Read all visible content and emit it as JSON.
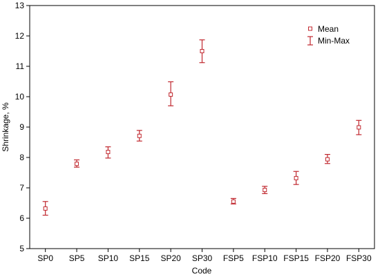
{
  "chart_data": {
    "type": "scatter",
    "xlabel": "Code",
    "ylabel": "Shrinkage, %",
    "ylim": [
      5,
      13
    ],
    "yticks": [
      5,
      6,
      7,
      8,
      9,
      10,
      11,
      12,
      13
    ],
    "categories": [
      "SP0",
      "SP5",
      "SP10",
      "SP15",
      "SP20",
      "SP30",
      "FSP5",
      "FSP10",
      "FSP15",
      "FSP20",
      "FSP30"
    ],
    "series": [
      {
        "name": "Mean",
        "values": [
          6.32,
          7.79,
          8.18,
          8.71,
          10.07,
          11.5,
          6.55,
          6.93,
          7.32,
          7.94,
          8.99
        ]
      },
      {
        "name": "Min-Max",
        "min": [
          6.1,
          7.68,
          7.98,
          8.54,
          9.7,
          11.12,
          6.47,
          6.81,
          7.11,
          7.8,
          8.75
        ],
        "max": [
          6.55,
          7.92,
          8.35,
          8.89,
          10.49,
          11.87,
          6.65,
          7.05,
          7.54,
          8.1,
          9.22
        ]
      }
    ],
    "legend": {
      "position": "top-right"
    },
    "grid": false,
    "color": "#c0262d"
  }
}
